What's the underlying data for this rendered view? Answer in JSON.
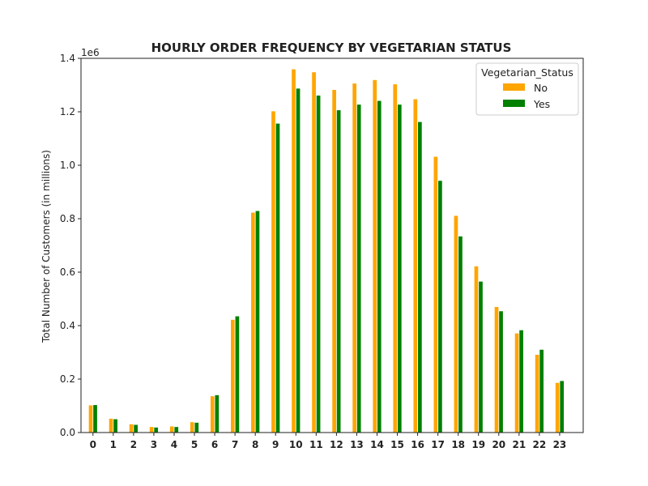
{
  "chart_data": {
    "type": "bar",
    "title": "HOURLY ORDER FREQUENCY BY VEGETARIAN STATUS",
    "xlabel": "",
    "ylabel": "Total Number of Customers (in millions)",
    "offset_text": "1e6",
    "ylim": [
      0,
      1.4
    ],
    "yticks": [
      "0.0",
      "0.2",
      "0.4",
      "0.6",
      "0.8",
      "1.0",
      "1.2",
      "1.4"
    ],
    "categories": [
      "0",
      "1",
      "2",
      "3",
      "4",
      "5",
      "6",
      "7",
      "8",
      "9",
      "10",
      "11",
      "12",
      "13",
      "14",
      "15",
      "16",
      "17",
      "18",
      "19",
      "20",
      "21",
      "22",
      "23"
    ],
    "legend": {
      "title": "Vegetarian_Status",
      "position": "top-right"
    },
    "grid": false,
    "series": [
      {
        "name": "No",
        "color": "#FFA500",
        "values": [
          0.103,
          0.053,
          0.032,
          0.022,
          0.024,
          0.04,
          0.137,
          0.423,
          0.824,
          1.203,
          1.36,
          1.349,
          1.283,
          1.307,
          1.32,
          1.304,
          1.248,
          1.033,
          0.812,
          0.623,
          0.471,
          0.372,
          0.292,
          0.187
        ]
      },
      {
        "name": "Yes",
        "color": "#008000",
        "values": [
          0.104,
          0.051,
          0.03,
          0.02,
          0.022,
          0.038,
          0.141,
          0.436,
          0.83,
          1.157,
          1.288,
          1.262,
          1.207,
          1.228,
          1.242,
          1.228,
          1.163,
          0.943,
          0.735,
          0.566,
          0.455,
          0.384,
          0.311,
          0.194
        ]
      }
    ]
  }
}
